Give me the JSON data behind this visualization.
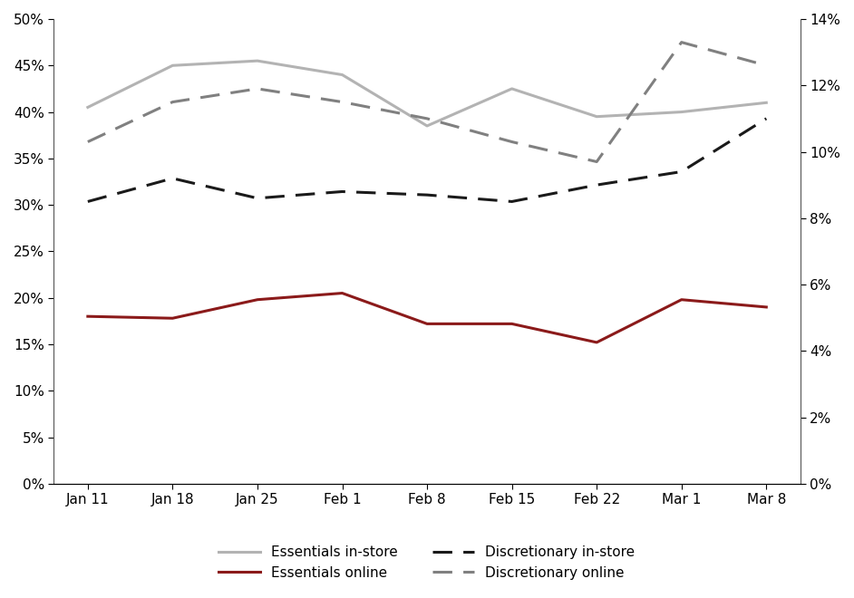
{
  "x_labels": [
    "Jan 11",
    "Jan 18",
    "Jan 25",
    "Feb 1",
    "Feb 8",
    "Feb 15",
    "Feb 22",
    "Mar 1",
    "Mar 8"
  ],
  "essentials_instore": [
    0.405,
    0.45,
    0.455,
    0.44,
    0.385,
    0.425,
    0.395,
    0.4,
    0.41
  ],
  "essentials_online": [
    0.18,
    0.178,
    0.198,
    0.205,
    0.172,
    0.172,
    0.152,
    0.198,
    0.19
  ],
  "discretionary_instore": [
    0.085,
    0.092,
    0.086,
    0.088,
    0.087,
    0.085,
    0.09,
    0.094,
    0.11
  ],
  "discretionary_online": [
    0.103,
    0.115,
    0.119,
    0.115,
    0.11,
    0.103,
    0.097,
    0.133,
    0.126
  ],
  "left_ylim": [
    0.0,
    0.5
  ],
  "right_ylim": [
    0.0,
    0.14
  ],
  "left_yticks": [
    0.0,
    0.05,
    0.1,
    0.15,
    0.2,
    0.25,
    0.3,
    0.35,
    0.4,
    0.45,
    0.5
  ],
  "right_yticks": [
    0.0,
    0.02,
    0.04,
    0.06,
    0.08,
    0.1,
    0.12,
    0.14
  ],
  "color_essentials_instore": "#b3b3b3",
  "color_essentials_online": "#8b1a1a",
  "color_discretionary_instore": "#1a1a1a",
  "color_discretionary_online": "#808080",
  "linewidth": 2.2,
  "legend_fontsize": 11,
  "tick_fontsize": 11
}
